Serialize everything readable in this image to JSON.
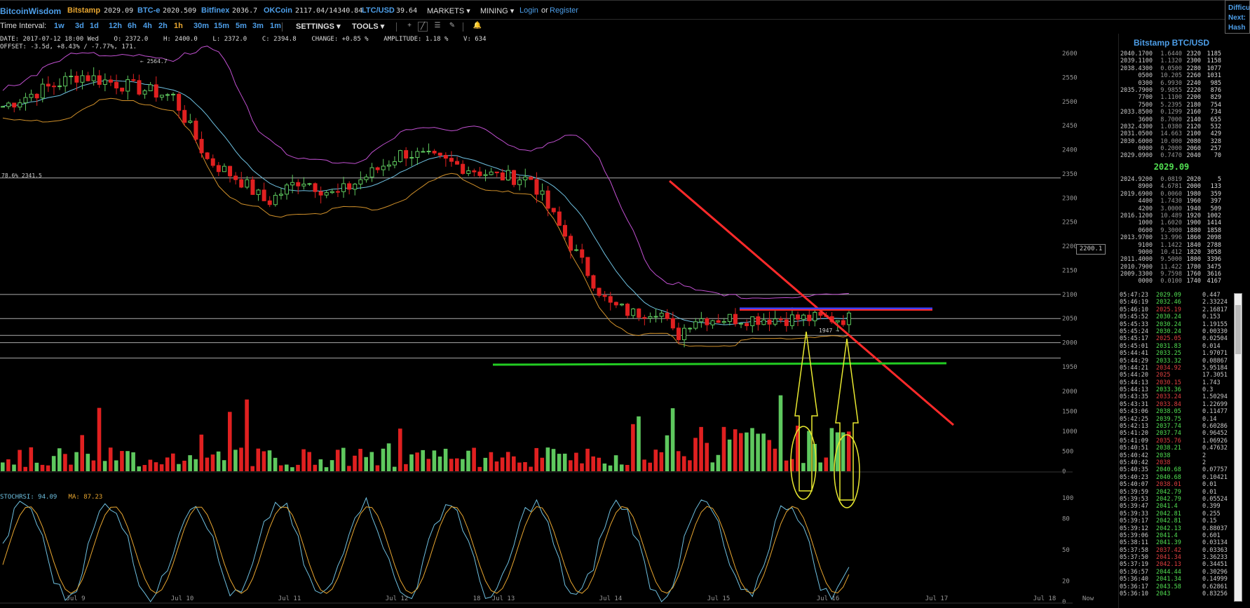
{
  "nav": {
    "brand": "BitcoinWisdom",
    "exchanges": [
      {
        "name": "Bitstamp",
        "price": "2029.09",
        "active": true
      },
      {
        "name": "BTC-e",
        "price": "2020.509"
      },
      {
        "name": "Bitfinex",
        "price": "2036.7"
      },
      {
        "name": "OKCoin",
        "price": "2117.04/14340.84"
      },
      {
        "name": "LTC/USD",
        "price": "39.64"
      }
    ],
    "markets_label": "MARKETS",
    "mining_label": "MINING",
    "login_label": "Login",
    "or_label": "or",
    "register_label": "Register"
  },
  "corner": {
    "line1": "Difficu",
    "line2": "Next:",
    "line3": "Hash R"
  },
  "toolbar": {
    "time_interval_label": "Time Interval:",
    "intervals": [
      "1w",
      "3d",
      "1d",
      "12h",
      "6h",
      "4h",
      "2h",
      "1h",
      "30m",
      "15m",
      "5m",
      "3m",
      "1m"
    ],
    "selected_interval": "1h",
    "settings_label": "SETTINGS",
    "tools_label": "TOOLS"
  },
  "ohlc": {
    "line1": "DATE: 2017-07-12 18:00 Wed    O: 2372.0    H: 2400.0    L: 2372.0    C: 2394.8    CHANGE: +0.85 %    AMPLITUDE: 1.18 %    V: 634",
    "line2": "OFFSET: -3.5d, +8.43% / -7.77%, 171."
  },
  "stoch": {
    "label": "STOCHRSI: 94.09",
    "ma": "MA: 87.23"
  },
  "chart_data": {
    "type": "candlestick",
    "price_axis": [
      "2600",
      "2550",
      "2500",
      "2450",
      "2400",
      "2350",
      "2300",
      "2250",
      "2200",
      "2150",
      "2100",
      "2050",
      "2000",
      "1950"
    ],
    "price_range": [
      1950,
      2600
    ],
    "volume_axis": [
      "2000",
      "1500",
      "1000",
      "500",
      "0"
    ],
    "stoch_axis": [
      "100",
      "80",
      "50",
      "20",
      "0"
    ],
    "x_labels": [
      "Jul 9",
      "Jul 10",
      "Jul 11",
      "Jul 12",
      "18",
      "Jul 13",
      "Jul 14",
      "Jul 15",
      "Jul 16",
      "Jul 17",
      "Jul 18",
      "Now"
    ],
    "annotations": {
      "high_marker": "2564.7",
      "fib_label": "78.6% 2341.5",
      "low_marker": "1947",
      "price_tag": "2200.1"
    },
    "horizontal_levels": [
      2341.5,
      2100,
      2050,
      2015,
      2000,
      1968
    ],
    "colors": {
      "up": "#5ec85e",
      "down": "#e02020",
      "bb_upper": "#c050d0",
      "bb_mid": "#6ec0e0",
      "bb_lower": "#d0902a",
      "trendline": "#ff2a2a",
      "support": "#22cc22",
      "resistance": "#4040ff",
      "arrows": "#e8e830"
    }
  },
  "orderbook": {
    "title": "Bitstamp BTC/USD",
    "asks": [
      [
        "2040.1700",
        "1.6440",
        "2320",
        "1185"
      ],
      [
        "2039.1100",
        "1.1320",
        "2300",
        "1158"
      ],
      [
        "2038.4300",
        "0.0500",
        "2280",
        "1077"
      ],
      [
        "0500",
        "10.205",
        "2260",
        "1031"
      ],
      [
        "0300",
        "6.9930",
        "2240",
        "985"
      ],
      [
        "2035.7900",
        "9.9855",
        "2220",
        "876"
      ],
      [
        "7700",
        "1.1100",
        "2200",
        "829"
      ],
      [
        "7500",
        "5.2395",
        "2180",
        "754"
      ],
      [
        "2033.8500",
        "0.1299",
        "2160",
        "734"
      ],
      [
        "3600",
        "8.7000",
        "2140",
        "655"
      ],
      [
        "2032.4300",
        "1.0380",
        "2120",
        "532"
      ],
      [
        "2031.0500",
        "14.663",
        "2100",
        "429"
      ],
      [
        "2030.6000",
        "10.000",
        "2080",
        "328"
      ],
      [
        "0000",
        "0.2000",
        "2060",
        "257"
      ],
      [
        "2029.0900",
        "0.7470",
        "2040",
        "70"
      ]
    ],
    "last_price": "2029.09",
    "bids": [
      [
        "2024.9200",
        "0.0819",
        "2020",
        "5"
      ],
      [
        "8900",
        "4.6781",
        "2000",
        "133"
      ],
      [
        "2019.6900",
        "0.0060",
        "1980",
        "359"
      ],
      [
        "4400",
        "1.7430",
        "1960",
        "397"
      ],
      [
        "4200",
        "3.0000",
        "1940",
        "509"
      ],
      [
        "2016.1200",
        "10.489",
        "1920",
        "1002"
      ],
      [
        "1000",
        "1.6020",
        "1900",
        "1414"
      ],
      [
        "0600",
        "9.3000",
        "1880",
        "1858"
      ],
      [
        "2013.9700",
        "13.996",
        "1860",
        "2098"
      ],
      [
        "9100",
        "1.1422",
        "1840",
        "2788"
      ],
      [
        "9000",
        "10.412",
        "1820",
        "3058"
      ],
      [
        "2011.4000",
        "9.5000",
        "1800",
        "3396"
      ],
      [
        "2010.7900",
        "11.422",
        "1780",
        "3475"
      ],
      [
        "2009.3300",
        "9.7598",
        "1760",
        "3616"
      ],
      [
        "0000",
        "0.0100",
        "1740",
        "4167"
      ]
    ]
  },
  "trades": [
    [
      "05:47:23",
      "2029.09",
      "0.447",
      "up"
    ],
    [
      "05:46:19",
      "2032.46",
      "2.33224",
      "up"
    ],
    [
      "05:46:10",
      "2025.19",
      "2.16817",
      "dn"
    ],
    [
      "05:45:52",
      "2030.24",
      "0.153",
      "up"
    ],
    [
      "05:45:33",
      "2030.24",
      "1.19155",
      "up"
    ],
    [
      "05:45:24",
      "2030.24",
      "0.00330",
      "up"
    ],
    [
      "05:45:17",
      "2025.05",
      "0.02504",
      "dn"
    ],
    [
      "05:45:01",
      "2031.83",
      "0.014",
      "up"
    ],
    [
      "05:44:41",
      "2033.25",
      "1.97071",
      "up"
    ],
    [
      "05:44:29",
      "2033.32",
      "0.08867",
      "up"
    ],
    [
      "05:44:21",
      "2034.92",
      "5.95184",
      "dn"
    ],
    [
      "05:44:20",
      "2025",
      "17.3051",
      "dn"
    ],
    [
      "05:44:13",
      "2030.15",
      "1.743",
      "dn"
    ],
    [
      "05:44:13",
      "2033.36",
      "0.3",
      "up"
    ],
    [
      "05:43:35",
      "2033.24",
      "1.50294",
      "dn"
    ],
    [
      "05:43:31",
      "2033.84",
      "1.22699",
      "dn"
    ],
    [
      "05:43:06",
      "2038.05",
      "0.11477",
      "up"
    ],
    [
      "05:42:25",
      "2039.75",
      "0.14",
      "up"
    ],
    [
      "05:42:13",
      "2037.74",
      "0.60286",
      "up"
    ],
    [
      "05:41:20",
      "2037.74",
      "0.96452",
      "up"
    ],
    [
      "05:41:09",
      "2035.76",
      "1.06926",
      "dn"
    ],
    [
      "05:40:51",
      "2038.21",
      "0.47632",
      "up"
    ],
    [
      "05:40:42",
      "2038",
      "2",
      "up"
    ],
    [
      "05:40:42",
      "2038",
      "2",
      "dn"
    ],
    [
      "05:40:35",
      "2040.68",
      "0.07757",
      "up"
    ],
    [
      "05:40:23",
      "2040.68",
      "0.10421",
      "up"
    ],
    [
      "05:40:07",
      "2038.01",
      "0.01",
      "dn"
    ],
    [
      "05:39:59",
      "2042.79",
      "0.01",
      "up"
    ],
    [
      "05:39:53",
      "2042.79",
      "0.05524",
      "up"
    ],
    [
      "05:39:47",
      "2041.4",
      "0.399",
      "up"
    ],
    [
      "05:39:33",
      "2042.81",
      "0.255",
      "up"
    ],
    [
      "05:39:17",
      "2042.81",
      "0.15",
      "up"
    ],
    [
      "05:39:12",
      "2042.13",
      "0.88037",
      "up"
    ],
    [
      "05:39:06",
      "2041.4",
      "0.601",
      "up"
    ],
    [
      "05:38:11",
      "2041.39",
      "0.03134",
      "up"
    ],
    [
      "05:37:58",
      "2037.42",
      "0.03363",
      "dn"
    ],
    [
      "05:37:50",
      "2041.34",
      "3.36233",
      "dn"
    ],
    [
      "05:37:19",
      "2042.13",
      "0.34451",
      "dn"
    ],
    [
      "05:36:57",
      "2044.44",
      "0.30296",
      "up"
    ],
    [
      "05:36:40",
      "2041.34",
      "0.14999",
      "up"
    ],
    [
      "05:36:17",
      "2043.58",
      "0.62861",
      "up"
    ],
    [
      "05:36:10",
      "2043",
      "0.83256",
      "up"
    ]
  ]
}
